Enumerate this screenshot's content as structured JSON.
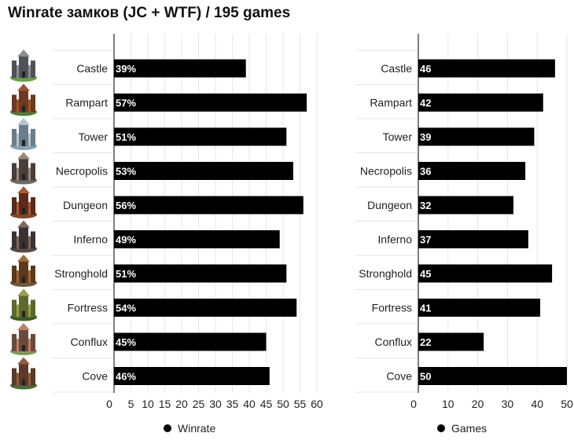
{
  "title": "Winrate замков (JC + WTF) / 195 games",
  "chart_data": [
    {
      "type": "bar",
      "orientation": "horizontal",
      "categories": [
        "Castle",
        "Rampart",
        "Tower",
        "Necropolis",
        "Dungeon",
        "Inferno",
        "Stronghold",
        "Fortress",
        "Conflux",
        "Cove"
      ],
      "series": [
        {
          "name": "Winrate",
          "values": [
            39,
            57,
            51,
            53,
            56,
            49,
            51,
            54,
            45,
            46
          ]
        }
      ],
      "data_labels": [
        "39%",
        "57%",
        "51%",
        "53%",
        "56%",
        "49%",
        "51%",
        "54%",
        "45%",
        "46%"
      ],
      "x_ticks": [
        "0",
        "5",
        "10",
        "15",
        "20",
        "25",
        "30",
        "35",
        "40",
        "45",
        "50",
        "55",
        "60"
      ],
      "xlim": [
        0,
        60
      ],
      "grid": true,
      "legend": "bottom"
    },
    {
      "type": "bar",
      "orientation": "horizontal",
      "categories": [
        "Castle",
        "Rampart",
        "Tower",
        "Necropolis",
        "Dungeon",
        "Inferno",
        "Stronghold",
        "Fortress",
        "Conflux",
        "Cove"
      ],
      "series": [
        {
          "name": "Games",
          "values": [
            46,
            42,
            39,
            36,
            32,
            37,
            45,
            41,
            22,
            50
          ]
        }
      ],
      "data_labels": [
        "46",
        "42",
        "39",
        "36",
        "32",
        "37",
        "45",
        "41",
        "22",
        "50"
      ],
      "x_ticks": [
        "0",
        "10",
        "20",
        "30",
        "40",
        "50"
      ],
      "xlim": [
        0,
        50
      ],
      "grid": true,
      "legend": "bottom"
    }
  ],
  "icons": [
    "castle-town-icon",
    "rampart-town-icon",
    "tower-town-icon",
    "necropolis-town-icon",
    "dungeon-town-icon",
    "inferno-town-icon",
    "stronghold-town-icon",
    "fortress-town-icon",
    "conflux-town-icon",
    "cove-town-icon"
  ],
  "colors": {
    "bar": "#000000",
    "bar_label": "#ffffff",
    "grid": "#e6e6e6",
    "axis": "#555555",
    "text": "#222222"
  }
}
